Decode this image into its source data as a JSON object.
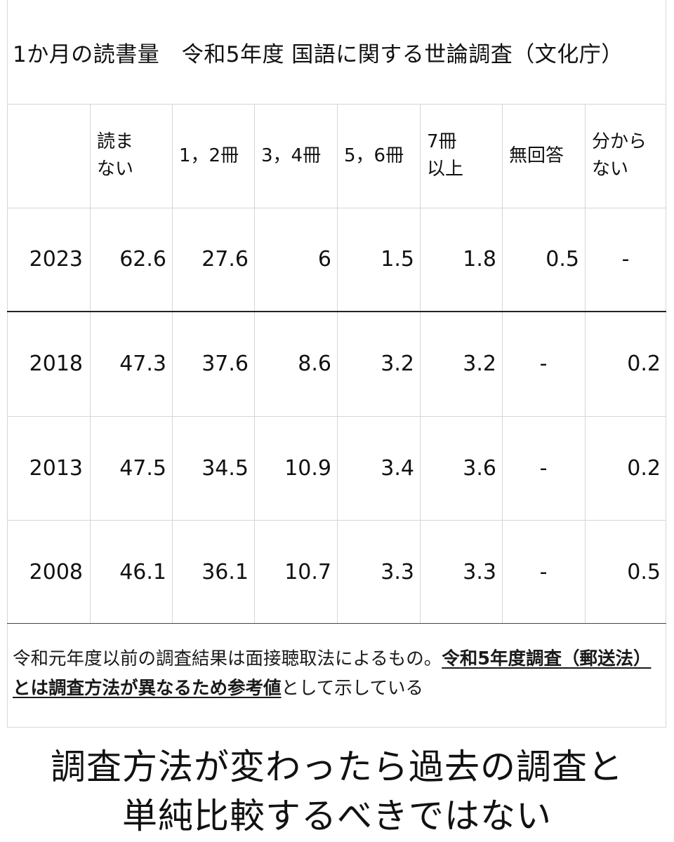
{
  "title": "1か月の読書量　令和5年度 国語に関する世論調査（文化庁）",
  "table": {
    "headers": [
      "",
      [
        "読ま",
        "ない"
      ],
      [
        "1，2冊"
      ],
      [
        "3，4冊"
      ],
      [
        "5，6冊"
      ],
      [
        "7冊",
        "以上"
      ],
      [
        "無回答"
      ],
      [
        "分から",
        "ない"
      ]
    ],
    "rows": [
      [
        "2023",
        "62.6",
        "27.6",
        "6",
        "1.5",
        "1.8",
        "0.5",
        "-"
      ],
      [
        "2018",
        "47.3",
        "37.6",
        "8.6",
        "3.2",
        "3.2",
        "-",
        "0.2"
      ],
      [
        "2013",
        "47.5",
        "34.5",
        "10.9",
        "3.4",
        "3.6",
        "-",
        "0.2"
      ],
      [
        "2008",
        "46.1",
        "36.1",
        "10.7",
        "3.3",
        "3.3",
        "-",
        "0.5"
      ]
    ]
  },
  "note": {
    "plain": "令和元年度以前の調査結果は面接聴取法によるもの。",
    "emphasis": "令和5年度調査（郵送法）とは調査方法が異なるため参考値",
    "tail": "として示している"
  },
  "caption": {
    "line1": "調査方法が変わったら過去の調査と",
    "line2": "単純比較するべきではない"
  }
}
